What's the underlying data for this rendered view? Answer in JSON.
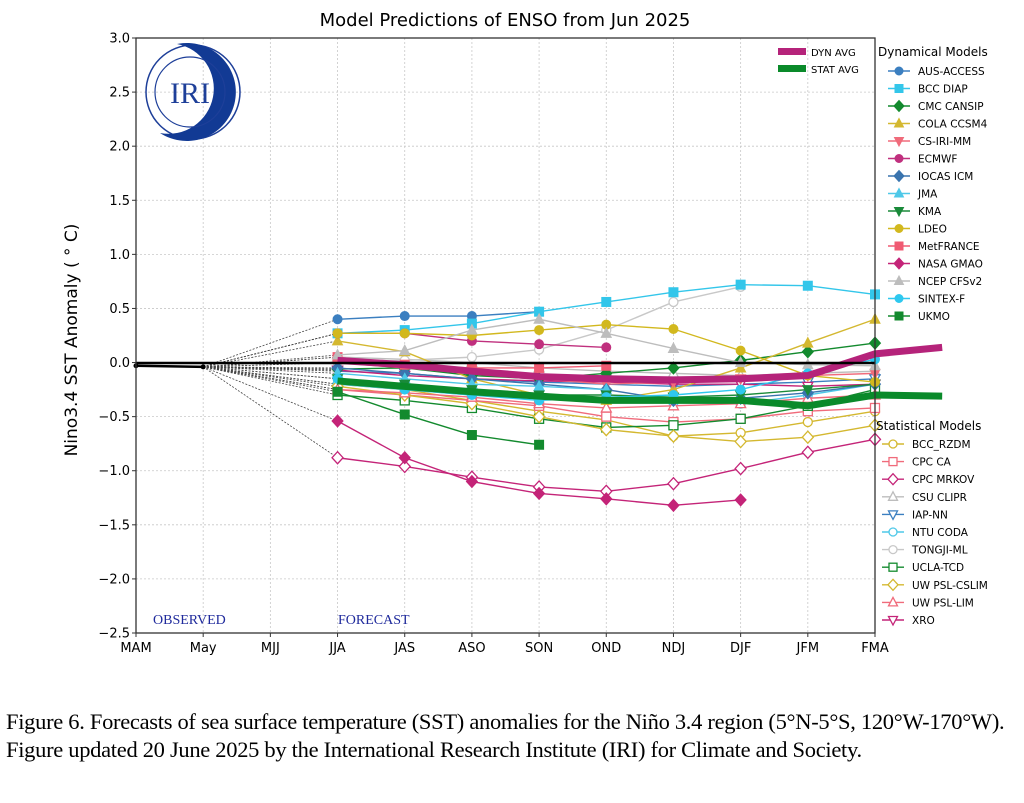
{
  "chart_data": {
    "type": "line",
    "title": "Model Predictions of ENSO from Jun 2025",
    "xlabel": "",
    "ylabel": "Nino3.4 SST Anomaly ( ° C)",
    "ylim": [
      -2.5,
      3.0
    ],
    "yticks": [
      "3.0",
      "2.5",
      "2.0",
      "1.5",
      "1.0",
      "0.5",
      "0.0",
      "−0.5",
      "−1.0",
      "−1.5",
      "−2.0",
      "−2.5"
    ],
    "ytick_values": [
      3.0,
      2.5,
      2.0,
      1.5,
      1.0,
      0.5,
      0.0,
      -0.5,
      -1.0,
      -1.5,
      -2.0,
      -2.5
    ],
    "categories": [
      "MAM",
      "May",
      "MJJ",
      "JJA",
      "JAS",
      "ASO",
      "SON",
      "OND",
      "NDJ",
      "DJF",
      "JFM",
      "FMA"
    ],
    "grid": true,
    "annotations": {
      "observed": "OBSERVED",
      "forecast": "FORECAST"
    },
    "logo_text": "IRI",
    "observed": {
      "name": "Observed",
      "x": [
        "MAM",
        "May"
      ],
      "values": [
        -0.03,
        -0.04
      ]
    },
    "forecast_start": "JJA",
    "legend_averages": [
      {
        "name": "DYN AVG",
        "color": "#b5237a"
      },
      {
        "name": "STAT AVG",
        "color": "#0a8a2a"
      }
    ],
    "legend_dynamical_title": "Dynamical Models",
    "legend_statistical_title": "Statistical Models",
    "averages": [
      {
        "name": "DYN AVG",
        "color": "#b5237a",
        "values": [
          0.02,
          -0.02,
          -0.08,
          -0.13,
          -0.15,
          -0.16,
          -0.15,
          -0.12,
          0.08,
          0.14
        ]
      },
      {
        "name": "STAT AVG",
        "color": "#0a8a2a",
        "values": [
          -0.17,
          -0.22,
          -0.27,
          -0.31,
          -0.35,
          -0.35,
          -0.35,
          -0.4,
          -0.3,
          -0.31
        ]
      }
    ],
    "dynamical": [
      {
        "name": "AUS-ACCESS",
        "color": "#3b7fc0",
        "marker": "circle",
        "values": [
          0.4,
          0.43,
          0.43,
          0.47
        ]
      },
      {
        "name": "BCC DIAP",
        "color": "#33c6ea",
        "marker": "square",
        "values": [
          0.27,
          0.3,
          0.36,
          0.47,
          0.56,
          0.65,
          0.72,
          0.71,
          0.63
        ]
      },
      {
        "name": "CMC CANSIP",
        "color": "#138a2e",
        "marker": "diamond",
        "values": [
          -0.06,
          -0.05,
          -0.12,
          -0.15,
          -0.1,
          -0.05,
          0.02,
          0.1,
          0.18
        ]
      },
      {
        "name": "COLA CCSM4",
        "color": "#d4b830",
        "marker": "triangle-up",
        "values": [
          0.2,
          0.1,
          -0.15,
          -0.3,
          -0.35,
          -0.25,
          -0.05,
          0.18,
          0.4
        ]
      },
      {
        "name": "CS-IRI-MM",
        "color": "#f06b7b",
        "marker": "triangle-down",
        "values": [
          0.0,
          -0.05,
          -0.1,
          -0.15,
          -0.2,
          -0.18,
          -0.15,
          -0.12,
          -0.1
        ]
      },
      {
        "name": "ECMWF",
        "color": "#c0307e",
        "marker": "circle",
        "values": [
          0.27,
          0.27,
          0.2,
          0.17,
          0.14
        ]
      },
      {
        "name": "IOCAS ICM",
        "color": "#3a74ae",
        "marker": "diamond",
        "values": [
          -0.05,
          -0.1,
          -0.15,
          -0.2,
          -0.25,
          -0.35,
          -0.33,
          -0.28,
          -0.2
        ]
      },
      {
        "name": "JMA",
        "color": "#4ec8e8",
        "marker": "triangle-up",
        "values": [
          -0.1,
          -0.15,
          -0.2,
          -0.22,
          -0.25
        ]
      },
      {
        "name": "KMA",
        "color": "#1a8a3a",
        "marker": "triangle-down",
        "values": [
          -0.15,
          -0.2,
          -0.25,
          -0.3,
          -0.3,
          -0.32,
          -0.3,
          -0.25,
          -0.2
        ]
      },
      {
        "name": "LDEO",
        "color": "#d2b81e",
        "marker": "circle",
        "values": [
          0.27,
          0.27,
          0.25,
          0.3,
          0.35,
          0.31,
          0.11,
          -0.12,
          -0.18
        ]
      },
      {
        "name": "MetFRANCE",
        "color": "#f05a72",
        "marker": "square",
        "values": [
          0.05,
          -0.02,
          -0.05,
          -0.05,
          -0.03
        ]
      },
      {
        "name": "NASA GMAO",
        "color": "#c42478",
        "marker": "diamond",
        "values": [
          -0.54,
          -0.88,
          -1.1,
          -1.21,
          -1.26,
          -1.32,
          -1.27
        ]
      },
      {
        "name": "NCEP CFSv2",
        "color": "#bdbdbd",
        "marker": "triangle-up",
        "values": [
          0.07,
          0.11,
          0.3,
          0.4,
          0.27,
          0.13,
          0.0,
          -0.02,
          -0.03
        ]
      },
      {
        "name": "SINTEX-F",
        "color": "#2ec8ef",
        "marker": "circle",
        "values": [
          -0.15,
          -0.25,
          -0.3,
          -0.35,
          -0.32,
          -0.3,
          -0.25,
          -0.1,
          0.03
        ]
      },
      {
        "name": "UKMO",
        "color": "#138a2e",
        "marker": "square",
        "values": [
          -0.27,
          -0.48,
          -0.67,
          -0.76
        ]
      }
    ],
    "statistical": [
      {
        "name": "BCC_RZDM",
        "color": "#d4b830",
        "marker": "circle-open",
        "values": [
          -0.2,
          -0.25,
          -0.35,
          -0.45,
          -0.53,
          -0.68,
          -0.65,
          -0.55,
          -0.45
        ]
      },
      {
        "name": "CPC CA",
        "color": "#f06b7b",
        "marker": "square-open",
        "values": [
          -0.25,
          -0.3,
          -0.35,
          -0.4,
          -0.5,
          -0.55,
          -0.52,
          -0.45,
          -0.42
        ]
      },
      {
        "name": "CPC MRKOV",
        "color": "#c42478",
        "marker": "diamond-open",
        "values": [
          -0.88,
          -0.96,
          -1.06,
          -1.15,
          -1.19,
          -1.12,
          -0.98,
          -0.83,
          -0.71
        ]
      },
      {
        "name": "CSU CLIPR",
        "color": "#bdbdbd",
        "marker": "triangle-up-open",
        "values": [
          0.05,
          0.03,
          0.0,
          -0.05,
          -0.08,
          -0.1,
          -0.12,
          -0.1,
          -0.08
        ]
      },
      {
        "name": "IAP-NN",
        "color": "#3b7fc0",
        "marker": "triangle-down-open",
        "values": [
          -0.08,
          -0.1,
          -0.15,
          -0.18,
          -0.2,
          -0.22,
          -0.2,
          -0.18,
          -0.15
        ]
      },
      {
        "name": "NTU CODA",
        "color": "#4ec8e8",
        "marker": "circle-open",
        "values": [
          -0.2,
          -0.25,
          -0.3,
          -0.33,
          -0.35,
          -0.37,
          -0.38,
          -0.3,
          -0.2
        ]
      },
      {
        "name": "TONGJI-ML",
        "color": "#c8c8c8",
        "marker": "circle-open",
        "values": [
          0.0,
          0.02,
          0.05,
          0.12,
          0.3,
          0.56,
          0.7
        ]
      },
      {
        "name": "UCLA-TCD",
        "color": "#138a2e",
        "marker": "square-open",
        "values": [
          -0.3,
          -0.35,
          -0.42,
          -0.52,
          -0.6,
          -0.58,
          -0.52,
          -0.4,
          -0.25
        ]
      },
      {
        "name": "UW PSL-CSLIM",
        "color": "#d4b830",
        "marker": "diamond-open",
        "values": [
          -0.22,
          -0.3,
          -0.38,
          -0.5,
          -0.62,
          -0.68,
          -0.73,
          -0.69,
          -0.58
        ]
      },
      {
        "name": "UW PSL-LIM",
        "color": "#f06b7b",
        "marker": "triangle-up-open",
        "values": [
          -0.25,
          -0.28,
          -0.32,
          -0.38,
          -0.42,
          -0.4,
          -0.38,
          -0.33,
          -0.3
        ]
      },
      {
        "name": "XRO",
        "color": "#c42478",
        "marker": "triangle-down-open",
        "values": [
          -0.07,
          -0.12,
          -0.15,
          -0.17,
          -0.18,
          -0.2,
          -0.2,
          -0.22,
          -0.2
        ]
      }
    ]
  },
  "caption": "Figure 6. Forecasts of sea surface temperature (SST) anomalies for the Niño 3.4 region (5°N-5°S, 120°W-170°W). Figure updated 20 June 2025 by the International Research Institute (IRI) for Climate and Society."
}
